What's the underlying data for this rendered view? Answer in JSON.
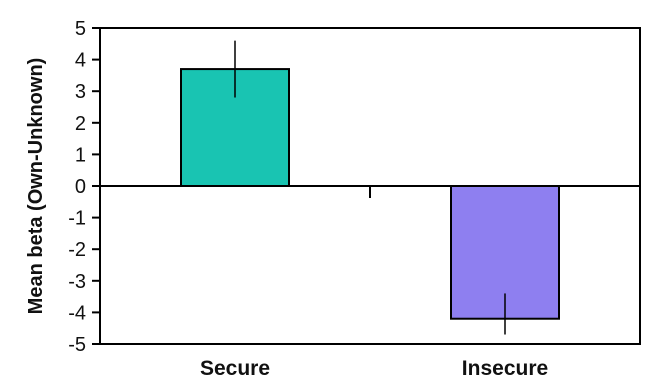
{
  "chart_data": {
    "type": "bar",
    "title": "",
    "xlabel": "",
    "ylabel": "Mean beta (Own-Unknown)",
    "categories": [
      "Secure",
      "Insecure"
    ],
    "values": [
      3.7,
      -4.2
    ],
    "error_bars": [
      {
        "low": 2.8,
        "high": 4.6
      },
      {
        "low": -4.7,
        "high": -3.4
      }
    ],
    "ylim": [
      -5,
      5
    ],
    "yticks": [
      "5",
      "4",
      "3",
      "2",
      "1",
      "0",
      "-1",
      "-2",
      "-3",
      "-4",
      "-5"
    ],
    "colors": [
      "#19C4B2",
      "#8E7FF0"
    ],
    "grid": false,
    "legend": "none"
  }
}
